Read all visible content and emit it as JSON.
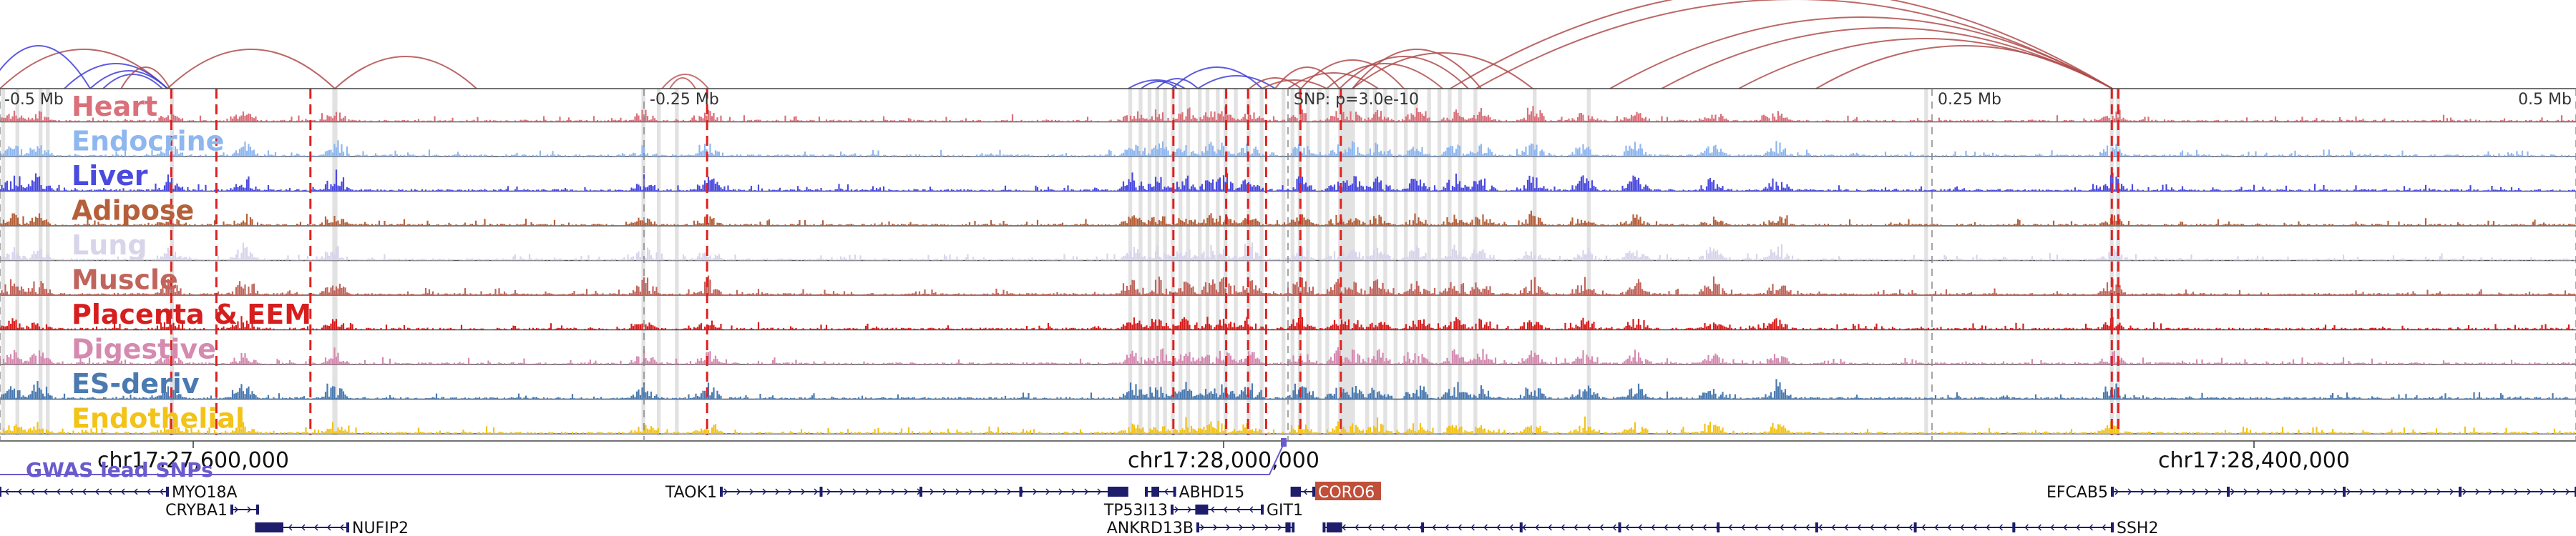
{
  "axis": {
    "top_ticks": [
      {
        "label": "-0.5 Mb",
        "pos": 27525000
      },
      {
        "label": "-0.25 Mb",
        "pos": 27775000
      },
      {
        "label": "SNP: p=3.0e-10",
        "pos": 28025000
      },
      {
        "label": "0.25 Mb",
        "pos": 28275000
      },
      {
        "label": "0.5 Mb",
        "pos": 28525000
      }
    ],
    "bottom_ticks": [
      {
        "label": "chr17:27,600,000",
        "pos": 27600000
      },
      {
        "label": "chr17:28,000,000",
        "pos": 28000000
      },
      {
        "label": "chr17:28,400,000",
        "pos": 28400000
      }
    ],
    "start": 27525000,
    "end": 28525000
  },
  "snp": {
    "pos": 28025000,
    "label": "SNP: p=3.0e-10",
    "color": "#6a5acd"
  },
  "gwas_label": "GWAS lead SNPs",
  "tracks": [
    {
      "name": "Heart",
      "color": "#d9707a"
    },
    {
      "name": "Endocrine",
      "color": "#8fb7ef"
    },
    {
      "name": "Liver",
      "color": "#4a4adf"
    },
    {
      "name": "Adipose",
      "color": "#b5603a"
    },
    {
      "name": "Lung",
      "color": "#d8d4ea"
    },
    {
      "name": "Muscle",
      "color": "#c0655c"
    },
    {
      "name": "Placenta & EEM",
      "color": "#d61e1e"
    },
    {
      "name": "Digestive",
      "color": "#d58ab0"
    },
    {
      "name": "ES-deriv",
      "color": "#4a7ab0"
    },
    {
      "name": "Endothelial",
      "color": "#f2c318"
    }
  ],
  "genes": [
    {
      "name": "MYO18A",
      "start": 27525000,
      "end": 27590000,
      "strand": "-",
      "row": 0,
      "label_side": "right"
    },
    {
      "name": "CRYBA1",
      "start": 27615000,
      "end": 27625000,
      "strand": "+",
      "row": 1,
      "label_side": "left"
    },
    {
      "name": "NUFIP2",
      "start": 27625000,
      "end": 27660000,
      "strand": "-",
      "row": 2,
      "label_side": "right"
    },
    {
      "name": "TAOK1",
      "start": 27805000,
      "end": 27960000,
      "strand": "+",
      "row": 0,
      "label_side": "left"
    },
    {
      "name": "ABHD15",
      "start": 27970000,
      "end": 27981000,
      "strand": "-",
      "row": 0,
      "label_side": "right"
    },
    {
      "name": "TP53I13",
      "start": 27980000,
      "end": 27992000,
      "strand": "+",
      "row": 1,
      "label_side": "left"
    },
    {
      "name": "GIT1",
      "start": 27993000,
      "end": 28015000,
      "strand": "-",
      "row": 1,
      "label_side": "right"
    },
    {
      "name": "ANKRD13B",
      "start": 27990000,
      "end": 28027000,
      "strand": "+",
      "row": 2,
      "label_side": "left"
    },
    {
      "name": "CORO6",
      "start": 28029000,
      "end": 28035000,
      "strand": "-",
      "row": 0,
      "label_side": "right",
      "highlight": true
    },
    {
      "name": "EFCAB5",
      "start": 28345000,
      "end": 28525000,
      "strand": "+",
      "row": 0,
      "label_side": "left"
    },
    {
      "name": "SSH2",
      "start": 28039000,
      "end": 28345000,
      "strand": "-",
      "row": 2,
      "label_side": "right"
    }
  ],
  "highlight_regions": [
    [
      27525500,
      27527000
    ],
    [
      27531000,
      27532500
    ],
    [
      27540000,
      27541500
    ],
    [
      27542800,
      27544300
    ],
    [
      27591000,
      27592500
    ],
    [
      27654000,
      27656000
    ],
    [
      27774000,
      27775500
    ],
    [
      27780000,
      27781500
    ],
    [
      27787000,
      27788500
    ],
    [
      27963000,
      27964500
    ],
    [
      27967000,
      27968500
    ],
    [
      27970500,
      27972000
    ],
    [
      27973500,
      27975000
    ],
    [
      27976500,
      27978000
    ],
    [
      27979500,
      27981000
    ],
    [
      27982500,
      27984000
    ],
    [
      27985500,
      27987000
    ],
    [
      27990000,
      27991500
    ],
    [
      27993000,
      27994500
    ],
    [
      27997000,
      27998500
    ],
    [
      28000000,
      28001500
    ],
    [
      28004000,
      28005500
    ],
    [
      28009000,
      28010500
    ],
    [
      28014000,
      28015500
    ],
    [
      28022500,
      28024000
    ],
    [
      28026000,
      28027500
    ],
    [
      28028800,
      28030300
    ],
    [
      28032000,
      28033500
    ],
    [
      28036500,
      28038000
    ],
    [
      28039500,
      28041000
    ],
    [
      28044500,
      28051000
    ],
    [
      28055000,
      28056500
    ],
    [
      28058000,
      28059500
    ],
    [
      28062000,
      28063500
    ],
    [
      28066000,
      28067500
    ],
    [
      28070000,
      28071500
    ],
    [
      28074000,
      28075500
    ],
    [
      28079000,
      28080500
    ],
    [
      28083000,
      28084500
    ],
    [
      28087000,
      28088500
    ],
    [
      28091000,
      28092500
    ],
    [
      28097000,
      28098500
    ],
    [
      28120000,
      28121500
    ],
    [
      28141000,
      28142500
    ],
    [
      28272000,
      28273500
    ],
    [
      28344000,
      28345500
    ],
    [
      28346500,
      28348000
    ]
  ],
  "red_lines": [
    27591500,
    27609000,
    27645500,
    27799500,
    27980500,
    28001000,
    28009500,
    28016500,
    28029800,
    28045500,
    28344800,
    28347300
  ],
  "arcs": [
    {
      "from": 27525000,
      "to": 27590000,
      "color": "#b04c4c",
      "h": 55
    },
    {
      "from": 27520000,
      "to": 27560000,
      "color": "#4040d8",
      "h": 60
    },
    {
      "from": 27550000,
      "to": 27590000,
      "color": "#4040d8",
      "h": 35
    },
    {
      "from": 27560000,
      "to": 27590000,
      "color": "#4040d8",
      "h": 25
    },
    {
      "from": 27565000,
      "to": 27588000,
      "color": "#4040d8",
      "h": 20
    },
    {
      "from": 27572000,
      "to": 27591000,
      "color": "#b04c4c",
      "h": 30
    },
    {
      "from": 27590000,
      "to": 27655000,
      "color": "#b04c4c",
      "h": 55
    },
    {
      "from": 27655000,
      "to": 27710000,
      "color": "#b04c4c",
      "h": 45
    },
    {
      "from": 27782000,
      "to": 27800000,
      "color": "#c05858",
      "h": 20
    },
    {
      "from": 27785000,
      "to": 27795000,
      "color": "#c05858",
      "h": 15
    },
    {
      "from": 27963000,
      "to": 27985000,
      "color": "#4040d8",
      "h": 12
    },
    {
      "from": 27968000,
      "to": 27982000,
      "color": "#4040d8",
      "h": 10
    },
    {
      "from": 27974000,
      "to": 27990000,
      "color": "#4040d8",
      "h": 14
    },
    {
      "from": 27980000,
      "to": 28015000,
      "color": "#4040d8",
      "h": 30
    },
    {
      "from": 27990000,
      "to": 28020000,
      "color": "#4040d8",
      "h": 18
    },
    {
      "from": 28010000,
      "to": 28030000,
      "color": "#b04c4c",
      "h": 15
    },
    {
      "from": 28015000,
      "to": 28040000,
      "color": "#b04c4c",
      "h": 12
    },
    {
      "from": 28020000,
      "to": 28045000,
      "color": "#b04c4c",
      "h": 30
    },
    {
      "from": 28025000,
      "to": 28060000,
      "color": "#b04c4c",
      "h": 22
    },
    {
      "from": 28030000,
      "to": 28070000,
      "color": "#b04c4c",
      "h": 40
    },
    {
      "from": 28040000,
      "to": 28085000,
      "color": "#b04c4c",
      "h": 35
    },
    {
      "from": 28045000,
      "to": 28095000,
      "color": "#b04c4c",
      "h": 45
    },
    {
      "from": 28050000,
      "to": 28100000,
      "color": "#b04c4c",
      "h": 55
    },
    {
      "from": 28050000,
      "to": 28120000,
      "color": "#b04c4c",
      "h": 50
    },
    {
      "from": 28088000,
      "to": 28345000,
      "color": "#b04c4c",
      "h": 140
    },
    {
      "from": 28098000,
      "to": 28345000,
      "color": "#b04c4c",
      "h": 125
    },
    {
      "from": 28150000,
      "to": 28345000,
      "color": "#b04c4c",
      "h": 100
    },
    {
      "from": 28170000,
      "to": 28345000,
      "color": "#b04c4c",
      "h": 85
    },
    {
      "from": 28200000,
      "to": 28345000,
      "color": "#b04c4c",
      "h": 70
    },
    {
      "from": 28230000,
      "to": 28345000,
      "color": "#b04c4c",
      "h": 60
    }
  ]
}
